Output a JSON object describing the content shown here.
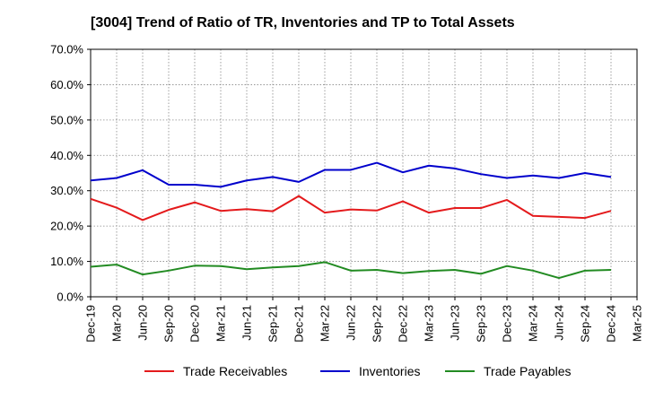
{
  "chart_data": {
    "type": "line",
    "title": "[3004]  Trend of Ratio of TR, Inventories and TP to Total Assets",
    "xlabel": "",
    "ylabel": "",
    "ylim": [
      0,
      70
    ],
    "y_ticks": [
      "0.0%",
      "10.0%",
      "20.0%",
      "30.0%",
      "40.0%",
      "50.0%",
      "60.0%",
      "70.0%"
    ],
    "x_ticks": [
      "Dec-19",
      "Mar-20",
      "Jun-20",
      "Sep-20",
      "Dec-20",
      "Mar-21",
      "Jun-21",
      "Sep-21",
      "Dec-21",
      "Mar-22",
      "Jun-22",
      "Sep-22",
      "Dec-22",
      "Mar-23",
      "Jun-23",
      "Sep-23",
      "Dec-23",
      "Mar-24",
      "Jun-24",
      "Sep-24",
      "Dec-24",
      "Mar-25"
    ],
    "x": [
      "Dec-19",
      "Mar-20",
      "Jun-20",
      "Sep-20",
      "Dec-20",
      "Mar-21",
      "Jun-21",
      "Sep-21",
      "Dec-21",
      "Mar-22",
      "Jun-22",
      "Sep-22",
      "Dec-22",
      "Mar-23",
      "Jun-23",
      "Sep-23",
      "Dec-23",
      "Mar-24",
      "Jun-24",
      "Sep-24",
      "Dec-24"
    ],
    "grid": true,
    "legend_position": "bottom",
    "series": [
      {
        "name": "Trade Receivables",
        "color": "#e41a1c",
        "values": [
          27.7,
          25.2,
          21.7,
          24.6,
          26.7,
          24.3,
          24.8,
          24.2,
          28.5,
          23.8,
          24.7,
          24.4,
          27.0,
          23.8,
          25.1,
          25.1,
          27.4,
          22.9,
          22.6,
          22.3,
          24.3
        ]
      },
      {
        "name": "Inventories",
        "color": "#0000cc",
        "values": [
          32.9,
          33.6,
          35.8,
          31.7,
          31.7,
          31.1,
          32.9,
          33.9,
          32.5,
          35.9,
          35.9,
          37.9,
          35.2,
          37.1,
          36.3,
          34.7,
          33.6,
          34.3,
          33.6,
          35.0,
          33.9
        ]
      },
      {
        "name": "Trade Payables",
        "color": "#228b22",
        "values": [
          8.5,
          9.1,
          6.3,
          7.4,
          8.8,
          8.7,
          7.8,
          8.3,
          8.7,
          9.8,
          7.4,
          7.6,
          6.7,
          7.3,
          7.6,
          6.5,
          8.7,
          7.4,
          5.3,
          7.4,
          7.6
        ]
      }
    ]
  }
}
